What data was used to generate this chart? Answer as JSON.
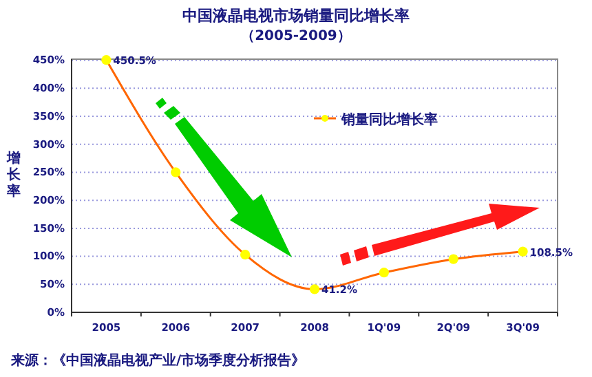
{
  "chart_data": {
    "type": "line",
    "title": "中国液晶电视市场销量同比增长率",
    "subtitle": "（2005-2009）",
    "ylabel": "增长率",
    "categories": [
      "2005",
      "2006",
      "2007",
      "2008",
      "1Q'09",
      "2Q'09",
      "3Q'09"
    ],
    "series": [
      {
        "name": "销量同比增长率",
        "color": "#ff6600",
        "values": [
          450.5,
          250,
          103,
          41.2,
          71,
          95,
          108.5
        ],
        "value_labels": [
          "450.5%",
          null,
          null,
          "41.2%",
          null,
          null,
          "108.5%"
        ]
      }
    ],
    "ylim": [
      0,
      452
    ],
    "yticks": [
      {
        "value": 0,
        "label": "0%"
      },
      {
        "value": 50,
        "label": "50%"
      },
      {
        "value": 100,
        "label": "100%"
      },
      {
        "value": 150,
        "label": "150%"
      },
      {
        "value": 200,
        "label": "200%"
      },
      {
        "value": 250,
        "label": "250%"
      },
      {
        "value": 300,
        "label": "300%"
      },
      {
        "value": 350,
        "label": "350%"
      },
      {
        "value": 400,
        "label": "400%"
      },
      {
        "value": 450,
        "label": "450%"
      }
    ],
    "grid": "y",
    "legend": "top right",
    "marker": "circle",
    "line_style": "solid",
    "annotations": [
      "来源：《中国液晶电视产业/市场季度分析报告》"
    ]
  }
}
